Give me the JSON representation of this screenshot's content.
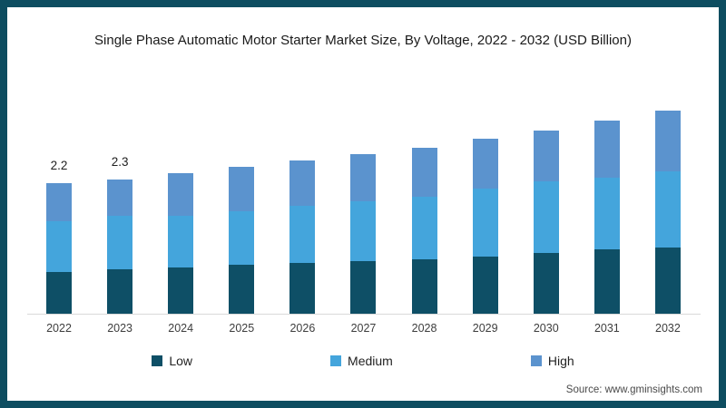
{
  "frame": {
    "border_color": "#0d4d60",
    "background": "#ffffff"
  },
  "title": "Single Phase Automatic Motor Starter Market Size, By Voltage, 2022 - 2032 (USD Billion)",
  "source": "Source: www.gminsights.com",
  "legend": [
    {
      "label": "Low",
      "color": "#0e4f66"
    },
    {
      "label": "Medium",
      "color": "#44a5dc"
    },
    {
      "label": "High",
      "color": "#5b93ce"
    }
  ],
  "chart_data": {
    "type": "bar",
    "stacked": true,
    "title": "Single Phase Automatic Motor Starter Market Size, By Voltage, 2022 - 2032 (USD Billion)",
    "unit": "USD Billion",
    "categories": [
      "2022",
      "2023",
      "2024",
      "2025",
      "2026",
      "2027",
      "2028",
      "2029",
      "2030",
      "2031",
      "2032"
    ],
    "series": [
      {
        "name": "Low",
        "color": "#0e4f66",
        "values": [
          0.7,
          0.75,
          0.78,
          0.82,
          0.86,
          0.89,
          0.92,
          0.97,
          1.02,
          1.09,
          1.12
        ]
      },
      {
        "name": "Medium",
        "color": "#44a5dc",
        "values": [
          0.86,
          0.9,
          0.88,
          0.91,
          0.97,
          1.01,
          1.05,
          1.15,
          1.21,
          1.21,
          1.29
        ]
      },
      {
        "name": "High",
        "color": "#5b93ce",
        "values": [
          0.64,
          0.62,
          0.71,
          0.75,
          0.76,
          0.79,
          0.84,
          0.84,
          0.87,
          0.97,
          1.02
        ]
      }
    ],
    "totals": [
      2.2,
      2.27,
      2.37,
      2.48,
      2.59,
      2.69,
      2.81,
      2.96,
      3.1,
      3.27,
      3.43
    ],
    "data_labels": [
      "2.2",
      "2.3",
      "",
      "",
      "",
      "",
      "",
      "",
      "",
      "",
      ""
    ],
    "ylim": [
      0,
      3.8
    ],
    "xlabel": "",
    "ylabel": "",
    "grid": false,
    "legend_position": "bottom"
  }
}
